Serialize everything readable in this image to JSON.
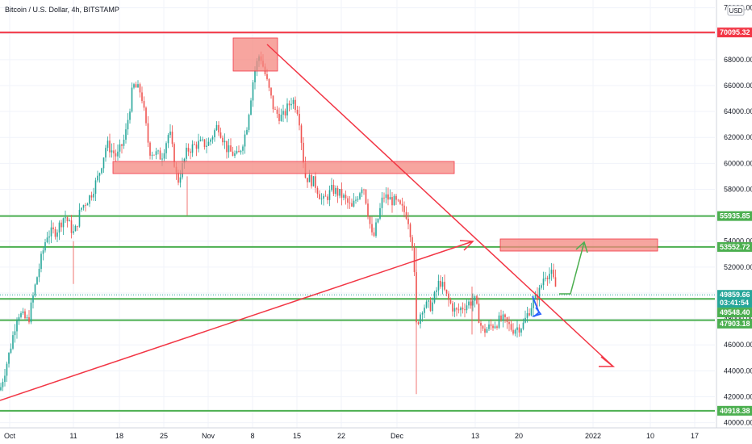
{
  "chart_data": {
    "type": "candlestick",
    "title": "Bitcoin / U.S. Dollar, 4h, BITSTAMP",
    "currency_unit": "USD",
    "x_ticks": [
      "Oct",
      "11",
      "18",
      "25",
      "Nov",
      "8",
      "15",
      "22",
      "Dec",
      "13",
      "20",
      "2022",
      "10",
      "17"
    ],
    "y_ticks": [
      "72000.00",
      "70000.00",
      "68000.00",
      "66000.00",
      "64000.00",
      "62000.00",
      "60000.00",
      "58000.00",
      "56000.00",
      "54000.00",
      "52000.00",
      "50000.00",
      "48000.00",
      "46000.00",
      "44000.00",
      "42000.00",
      "40000.00"
    ],
    "y_range": [
      39600,
      72600
    ],
    "price_tags": [
      {
        "label": "70095.32",
        "value": 70095.32,
        "color": "#f23645"
      },
      {
        "label": "55935.85",
        "value": 55935.85,
        "color": "#4caf50"
      },
      {
        "label": "53552.72",
        "value": 53552.72,
        "color": "#4caf50"
      },
      {
        "label": "49859.66",
        "value": 49859.66,
        "color": "#26a69a"
      },
      {
        "label": "03:41:54",
        "value": 49250,
        "color": "#26a69a"
      },
      {
        "label": "49548.40",
        "value": 48500,
        "color": "#4caf50"
      },
      {
        "label": "47903.18",
        "value": 47640,
        "color": "#4caf50"
      },
      {
        "label": "40918.38",
        "value": 40918.38,
        "color": "#4caf50"
      }
    ],
    "horizontal_levels": [
      {
        "value": 70095.32,
        "color": "#f23645"
      },
      {
        "value": 55935.85,
        "color": "#4caf50"
      },
      {
        "value": 53552.72,
        "color": "#4caf50"
      },
      {
        "value": 49548.4,
        "color": "#4caf50"
      },
      {
        "value": 47903.18,
        "color": "#4caf50"
      },
      {
        "value": 40918.38,
        "color": "#4caf50"
      }
    ],
    "colors": {
      "up": "#26a69a",
      "down": "#ef5350",
      "resistance": "#f23645",
      "support": "#4caf50",
      "zone_fill": "#f4877f",
      "arrow_blue": "#2962ff"
    }
  }
}
